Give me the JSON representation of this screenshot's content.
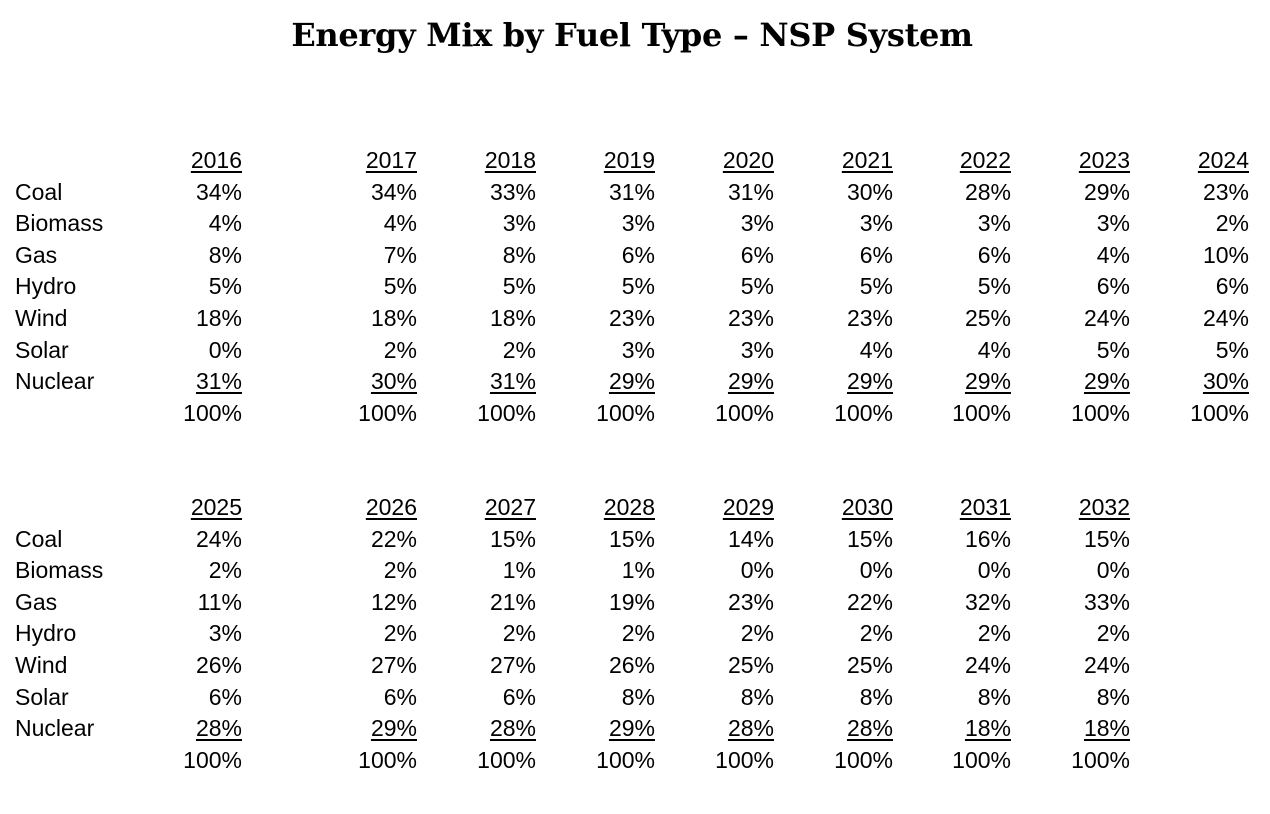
{
  "title": "Energy Mix by Fuel Type – NSP System",
  "fuel_types": [
    "Coal",
    "Biomass",
    "Gas",
    "Hydro",
    "Wind",
    "Solar",
    "Nuclear"
  ],
  "blocks": [
    {
      "columns": [
        {
          "year": "2016",
          "values": [
            "34%",
            "4%",
            "8%",
            "5%",
            "18%",
            "0%",
            "31%"
          ],
          "total": "100%"
        },
        {
          "year": "2017",
          "values": [
            "34%",
            "4%",
            "7%",
            "5%",
            "18%",
            "2%",
            "30%"
          ],
          "total": "100%"
        },
        {
          "year": "2018",
          "values": [
            "33%",
            "3%",
            "8%",
            "5%",
            "18%",
            "2%",
            "31%"
          ],
          "total": "100%"
        },
        {
          "year": "2019",
          "values": [
            "31%",
            "3%",
            "6%",
            "5%",
            "23%",
            "3%",
            "29%"
          ],
          "total": "100%"
        },
        {
          "year": "2020",
          "values": [
            "31%",
            "3%",
            "6%",
            "5%",
            "23%",
            "3%",
            "29%"
          ],
          "total": "100%"
        },
        {
          "year": "2021",
          "values": [
            "30%",
            "3%",
            "6%",
            "5%",
            "23%",
            "4%",
            "29%"
          ],
          "total": "100%"
        },
        {
          "year": "2022",
          "values": [
            "28%",
            "3%",
            "6%",
            "5%",
            "25%",
            "4%",
            "29%"
          ],
          "total": "100%"
        },
        {
          "year": "2023",
          "values": [
            "29%",
            "3%",
            "4%",
            "6%",
            "24%",
            "5%",
            "29%"
          ],
          "total": "100%"
        },
        {
          "year": "2024",
          "values": [
            "23%",
            "2%",
            "10%",
            "6%",
            "24%",
            "5%",
            "30%"
          ],
          "total": "100%"
        }
      ]
    },
    {
      "columns": [
        {
          "year": "2025",
          "values": [
            "24%",
            "2%",
            "11%",
            "3%",
            "26%",
            "6%",
            "28%"
          ],
          "total": "100%"
        },
        {
          "year": "2026",
          "values": [
            "22%",
            "2%",
            "12%",
            "2%",
            "27%",
            "6%",
            "29%"
          ],
          "total": "100%"
        },
        {
          "year": "2027",
          "values": [
            "15%",
            "1%",
            "21%",
            "2%",
            "27%",
            "6%",
            "28%"
          ],
          "total": "100%"
        },
        {
          "year": "2028",
          "values": [
            "15%",
            "1%",
            "19%",
            "2%",
            "26%",
            "8%",
            "29%"
          ],
          "total": "100%"
        },
        {
          "year": "2029",
          "values": [
            "14%",
            "0%",
            "23%",
            "2%",
            "25%",
            "8%",
            "28%"
          ],
          "total": "100%"
        },
        {
          "year": "2030",
          "values": [
            "15%",
            "0%",
            "22%",
            "2%",
            "25%",
            "8%",
            "28%"
          ],
          "total": "100%"
        },
        {
          "year": "2031",
          "values": [
            "16%",
            "0%",
            "32%",
            "2%",
            "24%",
            "8%",
            "18%"
          ],
          "total": "100%"
        },
        {
          "year": "2032",
          "values": [
            "15%",
            "0%",
            "33%",
            "2%",
            "24%",
            "8%",
            "18%"
          ],
          "total": "100%"
        }
      ]
    }
  ]
}
